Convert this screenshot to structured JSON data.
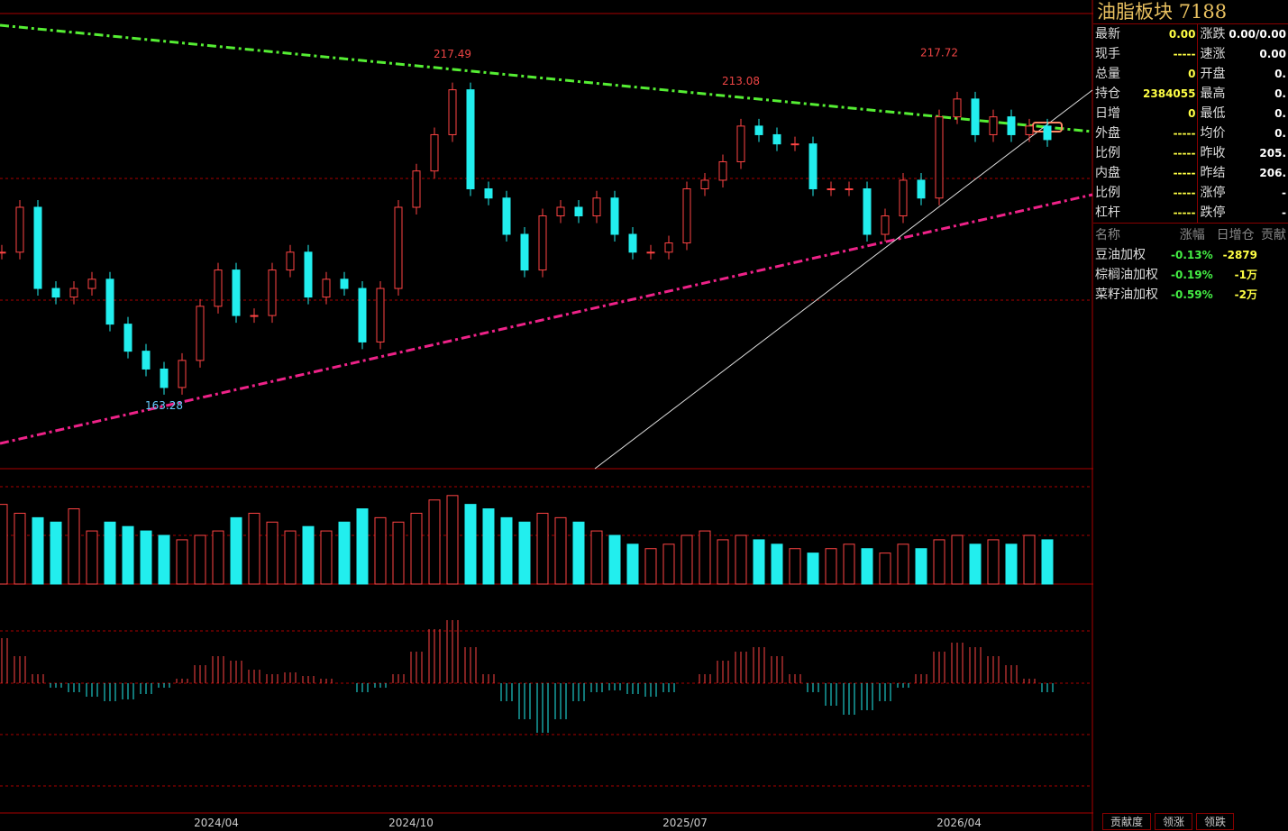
{
  "chart": {
    "annotations": [
      {
        "label": "217.49"
      },
      {
        "label": "213.08"
      },
      {
        "label": "217.72"
      },
      {
        "label": "163.28"
      }
    ],
    "ylim": [
      152.7,
      226.7
    ],
    "closes": [
      187.9,
      195.2,
      182.0,
      180.6,
      182.0,
      183.5,
      176.2,
      171.8,
      168.9,
      165.9,
      170.3,
      179.1,
      185.0,
      177.6,
      177.6,
      185.0,
      187.9,
      180.6,
      183.5,
      182.0,
      173.3,
      182.0,
      195.2,
      201.1,
      207.0,
      214.3,
      198.2,
      196.7,
      190.8,
      185.0,
      193.8,
      195.2,
      193.8,
      196.7,
      190.8,
      187.9,
      187.9,
      189.4,
      198.2,
      199.6,
      202.6,
      208.4,
      207.0,
      205.5,
      205.5,
      198.2,
      198.2,
      198.2,
      190.8,
      193.8,
      199.6,
      196.7,
      209.9,
      212.8,
      207.0,
      209.9,
      207.0,
      208.4,
      206.2
    ],
    "volume_ylim": [
      0,
      110
    ],
    "volumes": [
      90,
      80,
      75,
      70,
      85,
      60,
      70,
      65,
      60,
      55,
      50,
      55,
      60,
      75,
      80,
      70,
      60,
      65,
      60,
      70,
      85,
      75,
      70,
      80,
      95,
      100,
      90,
      85,
      75,
      70,
      80,
      75,
      70,
      60,
      55,
      45,
      40,
      45,
      55,
      60,
      50,
      55,
      50,
      45,
      40,
      35,
      40,
      45,
      40,
      35,
      45,
      40,
      50,
      55,
      45,
      50,
      45,
      55,
      50
    ],
    "macd_ylim": [
      -100,
      100
    ],
    "macd": [
      50,
      30,
      10,
      -5,
      -10,
      -15,
      -20,
      -18,
      -12,
      -5,
      5,
      20,
      30,
      25,
      15,
      10,
      12,
      8,
      5,
      0,
      -10,
      -5,
      10,
      35,
      60,
      70,
      40,
      10,
      -20,
      -40,
      -55,
      -40,
      -20,
      -10,
      -8,
      -12,
      -15,
      -10,
      0,
      10,
      25,
      35,
      40,
      30,
      10,
      -10,
      -25,
      -35,
      -30,
      -20,
      -5,
      10,
      35,
      45,
      40,
      30,
      20,
      5,
      -10
    ],
    "x_labels": [
      "2024/04",
      "2024/10",
      "2025/07",
      "2026/04"
    ]
  },
  "panel": {
    "title": "油脂板块",
    "code": "7188",
    "left": [
      [
        "最新",
        "0.00"
      ],
      [
        "现手",
        "-----"
      ],
      [
        "总量",
        "0"
      ],
      [
        "持仓",
        "2384055"
      ],
      [
        "日增",
        "0"
      ],
      [
        "外盘",
        "-----"
      ],
      [
        "比例",
        "-----"
      ],
      [
        "内盘",
        "-----"
      ],
      [
        "比例",
        "-----"
      ],
      [
        "杠杆",
        "-----"
      ]
    ],
    "right": [
      [
        "涨跌",
        "0.00/0.00"
      ],
      [
        "速涨",
        "0.00"
      ],
      [
        "开盘",
        "0."
      ],
      [
        "最高",
        "0."
      ],
      [
        "最低",
        "0."
      ],
      [
        "均价",
        "0."
      ],
      [
        "昨收",
        "205."
      ],
      [
        "昨结",
        "206."
      ],
      [
        "涨停",
        "-"
      ],
      [
        "跌停",
        "-"
      ]
    ],
    "table": {
      "header": [
        "名称",
        "涨幅",
        "日增仓",
        "贡献"
      ],
      "rows": [
        [
          "豆油加权",
          "-0.13%",
          "-2879"
        ],
        [
          "棕榈油加权",
          "-0.19%",
          "-1万"
        ],
        [
          "菜籽油加权",
          "-0.59%",
          "-2万"
        ]
      ]
    },
    "tabs": [
      "贡献度",
      "领涨",
      "领跌"
    ]
  }
}
